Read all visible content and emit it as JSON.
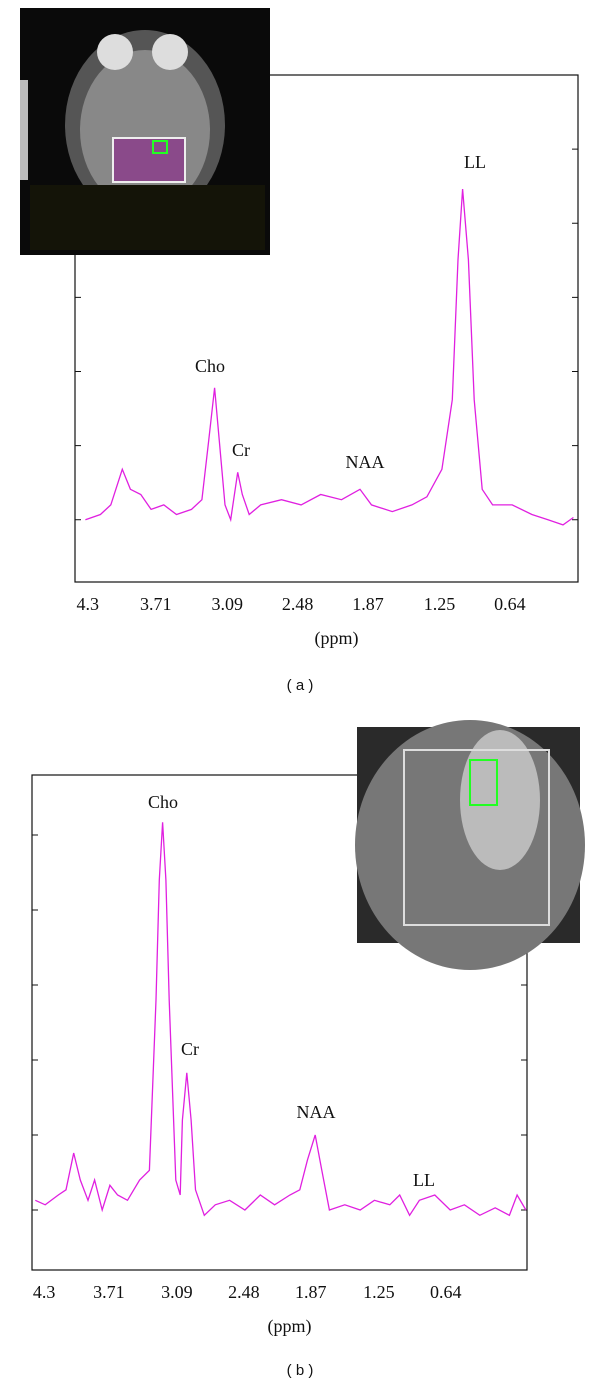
{
  "chart_data": [
    {
      "type": "line",
      "caption": "( a )",
      "xlabel": "(ppm)",
      "color": "#e020e0",
      "xlim": [
        4.41,
        0.05
      ],
      "xticks": [
        4.3,
        3.71,
        3.09,
        2.48,
        1.87,
        1.25,
        0.64
      ],
      "ylim": [
        0.16,
        7.0
      ],
      "yticks": [
        1,
        2,
        3,
        4,
        5,
        6,
        7
      ],
      "annotations": [
        "Cho",
        "Cr",
        "NAA",
        "LL"
      ],
      "x": [
        4.32,
        4.19,
        4.1,
        4.0,
        3.93,
        3.84,
        3.75,
        3.64,
        3.53,
        3.4,
        3.31,
        3.25,
        3.2,
        3.16,
        3.11,
        3.06,
        3.0,
        2.96,
        2.9,
        2.8,
        2.62,
        2.45,
        2.28,
        2.1,
        1.94,
        1.84,
        1.66,
        1.49,
        1.36,
        1.23,
        1.14,
        1.09,
        1.05,
        1.0,
        0.95,
        0.88,
        0.79,
        0.62,
        0.45,
        0.31,
        0.18,
        0.09
      ],
      "values": [
        1.0,
        1.07,
        1.2,
        1.68,
        1.41,
        1.34,
        1.14,
        1.2,
        1.07,
        1.14,
        1.27,
        2.08,
        2.78,
        2.08,
        1.2,
        1.0,
        1.64,
        1.34,
        1.07,
        1.2,
        1.27,
        1.2,
        1.34,
        1.27,
        1.41,
        1.2,
        1.11,
        1.2,
        1.31,
        1.68,
        2.62,
        4.51,
        5.46,
        4.51,
        2.62,
        1.41,
        1.2,
        1.2,
        1.07,
        1.0,
        0.93,
        1.03
      ]
    },
    {
      "type": "line",
      "caption": "( b )",
      "xlabel": "(ppm)",
      "color": "#e020e0",
      "xlim": [
        4.41,
        -0.1
      ],
      "xticks": [
        4.3,
        3.71,
        3.09,
        2.48,
        1.87,
        1.25,
        0.64
      ],
      "ylim": [
        0.2,
        6.8
      ],
      "yticks": [
        1,
        2,
        3,
        4,
        5,
        6
      ],
      "annotations": [
        "Cho",
        "Cr",
        "NAA",
        "LL"
      ],
      "x": [
        4.38,
        4.29,
        4.17,
        4.1,
        4.03,
        3.97,
        3.9,
        3.84,
        3.77,
        3.7,
        3.63,
        3.54,
        3.43,
        3.34,
        3.28,
        3.25,
        3.22,
        3.19,
        3.16,
        3.1,
        3.06,
        3.04,
        3.0,
        2.96,
        2.92,
        2.84,
        2.74,
        2.61,
        2.47,
        2.33,
        2.2,
        2.06,
        1.97,
        1.9,
        1.83,
        1.77,
        1.7,
        1.56,
        1.42,
        1.29,
        1.15,
        1.06,
        0.97,
        0.88,
        0.74,
        0.6,
        0.47,
        0.33,
        0.19,
        0.06,
        -0.01,
        -0.09
      ],
      "values": [
        1.13,
        1.07,
        1.2,
        1.27,
        1.76,
        1.4,
        1.13,
        1.4,
        1.0,
        1.33,
        1.2,
        1.13,
        1.4,
        1.53,
        3.8,
        5.4,
        6.17,
        5.4,
        3.8,
        1.4,
        1.2,
        2.2,
        2.83,
        2.2,
        1.27,
        0.93,
        1.07,
        1.13,
        1.0,
        1.2,
        1.07,
        1.2,
        1.27,
        1.67,
        2.0,
        1.53,
        1.0,
        1.07,
        1.0,
        1.13,
        1.07,
        1.2,
        0.93,
        1.13,
        1.2,
        1.0,
        1.07,
        0.93,
        1.03,
        0.93,
        1.2,
        1.0
      ]
    }
  ]
}
